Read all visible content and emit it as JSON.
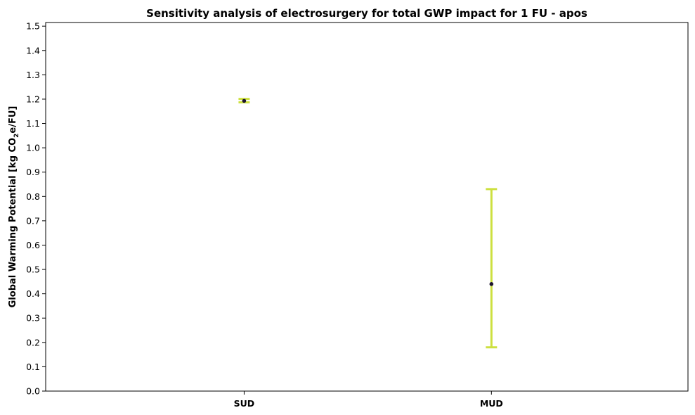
{
  "chart_data": {
    "type": "scatter",
    "title": "Sensitivity analysis of electrosurgery for total GWP impact for 1 FU - apos",
    "xlabel": "",
    "ylabel": "Global Warming Potential [kg CO",
    "ylabel_sub": "2",
    "ylabel_tail": "e/FU]",
    "categories": [
      "SUD",
      "MUD"
    ],
    "points": [
      {
        "category": "SUD",
        "value": 1.193,
        "min": 1.187,
        "max": 1.201
      },
      {
        "category": "MUD",
        "value": 0.44,
        "min": 0.18,
        "max": 0.83
      }
    ],
    "ylim": [
      0.0,
      1.515
    ],
    "yticks": [
      "0.0",
      "0.1",
      "0.2",
      "0.3",
      "0.4",
      "0.5",
      "0.6",
      "0.7",
      "0.8",
      "0.9",
      "1.0",
      "1.1",
      "1.2",
      "1.3",
      "1.4",
      "1.5"
    ],
    "grid": false,
    "colors": {
      "errorbar": "#cde040",
      "marker": "#1e1530",
      "axis": "#000000"
    }
  }
}
